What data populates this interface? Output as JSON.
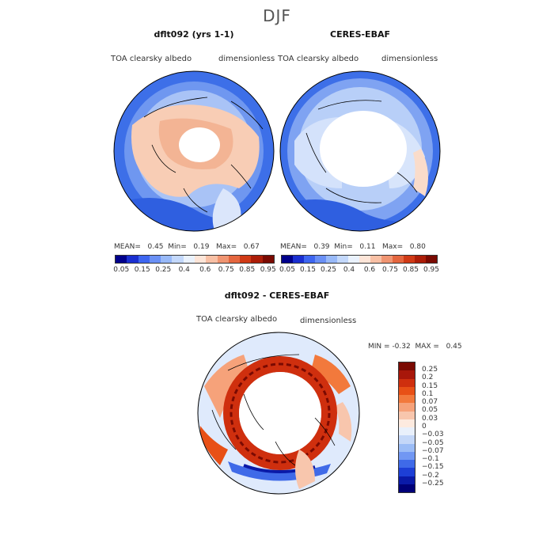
{
  "season": "DJF",
  "panels": [
    {
      "title": "dflt092 (yrs 1-1)",
      "variable": "TOA clearsky albedo",
      "units": "dimensionless",
      "stats": {
        "mean_label": "MEAN=",
        "mean": "0.45",
        "min_label": "Min=",
        "min": "0.19",
        "max_label": "Max=",
        "max": "0.67"
      }
    },
    {
      "title": "CERES-EBAF",
      "variable": "TOA clearsky albedo",
      "units": "dimensionless",
      "stats": {
        "mean_label": "MEAN=",
        "mean": "0.39",
        "min_label": "Min=",
        "min": "0.11",
        "max_label": "Max=",
        "max": "0.80"
      }
    }
  ],
  "colorbar_top": {
    "colors": [
      "#00008b",
      "#1a2fd0",
      "#3e66f0",
      "#6a90f5",
      "#98b9f8",
      "#c3d8fb",
      "#eaf2fd",
      "#fde5d8",
      "#f8c0a5",
      "#f09572",
      "#e4663f",
      "#d03a16",
      "#ac1d08",
      "#7a0a02"
    ],
    "ticks": [
      "0.05",
      "0.15",
      "0.25",
      "0.4",
      "0.6",
      "0.75",
      "0.85",
      "0.95"
    ]
  },
  "diff_panel": {
    "title": "dflt092 - CERES-EBAF",
    "variable": "TOA clearsky albedo",
    "units": "dimensionless",
    "min_label": "MIN =",
    "min": "-0.32",
    "max_label": "MAX =",
    "max": "0.45"
  },
  "colorbar_diff": {
    "colors": [
      "#7a0a02",
      "#a8170a",
      "#cf2f0e",
      "#e85016",
      "#f2793c",
      "#f6a27a",
      "#f8c6ad",
      "#fdeadf",
      "#e9f0fb",
      "#c4d7f8",
      "#9bbcf6",
      "#7197f3",
      "#3f6ae8",
      "#1d3fd6",
      "#0a1aa8",
      "#000078"
    ],
    "ticks": [
      "0.25",
      "0.2",
      "0.15",
      "0.1",
      "0.07",
      "0.05",
      "0.03",
      "0",
      "−0.03",
      "−0.05",
      "−0.07",
      "−0.1",
      "−0.15",
      "−0.2",
      "−0.25"
    ]
  }
}
